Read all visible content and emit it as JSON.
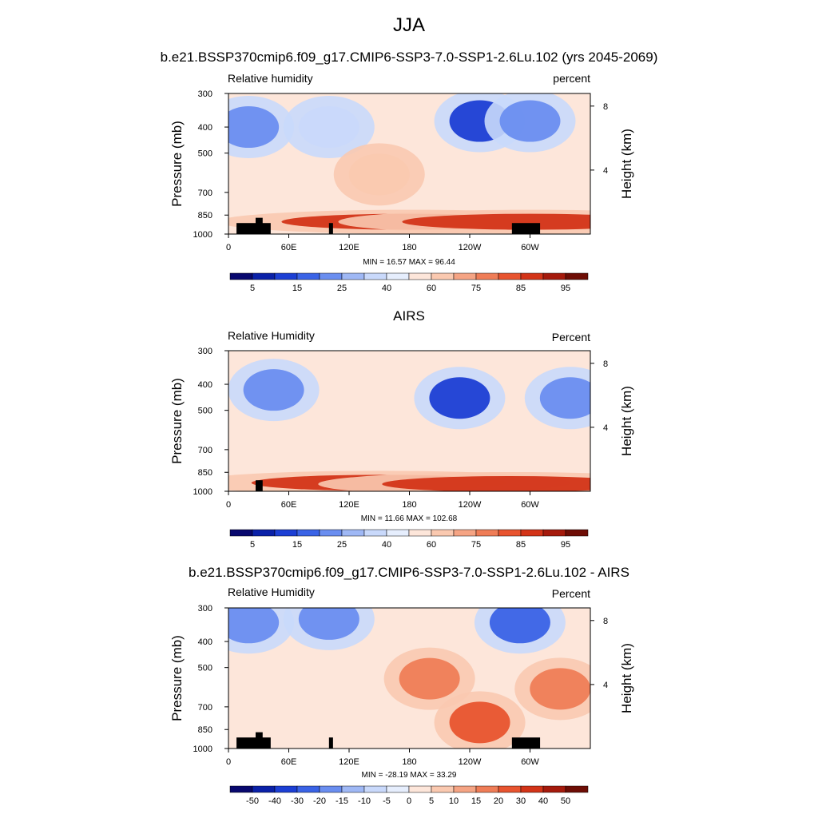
{
  "figure": {
    "title": "JJA"
  },
  "panels": [
    {
      "title": "b.e21.BSSP370cmip6.f09_g17.CMIP6-SSP3-7.0-SSP1-2.6Lu.102 (yrs 2045-2069)",
      "left_label": "Relative humidity",
      "right_label": "percent",
      "stats": "MIN =  16.57  MAX =  96.44"
    },
    {
      "title": "AIRS",
      "left_label": "Relative Humidity",
      "right_label": "Percent",
      "stats": "MIN =  11.66  MAX = 102.68"
    },
    {
      "title": "b.e21.BSSP370cmip6.f09_g17.CMIP6-SSP3-7.0-SSP1-2.6Lu.102 - AIRS",
      "left_label": "Relative Humidity",
      "right_label": "Percent",
      "stats": "MIN = -28.19  MAX =  33.29"
    }
  ],
  "chart_data": [
    {
      "type": "heatmap",
      "title": "b.e21.BSSP370cmip6.f09_g17.CMIP6-SSP3-7.0-SSP1-2.6Lu.102 (yrs 2045-2069)",
      "xlabel": "",
      "ylabel": "Pressure (mb)",
      "y2label": "Height (km)",
      "x_ticks": [
        "0",
        "60E",
        "120E",
        "180",
        "120W",
        "60W"
      ],
      "x_tick_values": [
        0,
        60,
        120,
        180,
        240,
        300
      ],
      "xlim": [
        0,
        360
      ],
      "y_ticks": [
        "300",
        "400",
        "500",
        "700",
        "850",
        "1000"
      ],
      "y_tick_values": [
        300,
        400,
        500,
        700,
        850,
        1000
      ],
      "ylim": [
        1000,
        300
      ],
      "y_scale": "log",
      "y2_ticks": [
        "8",
        "4"
      ],
      "y2_tick_values": [
        8,
        4
      ],
      "colorbar_labels": [
        "5",
        "15",
        "25",
        "40",
        "60",
        "75",
        "85",
        "95"
      ],
      "colorbar_colors": [
        "#08086e",
        "#0a21a8",
        "#1c3fd4",
        "#3a63e6",
        "#6a8ef0",
        "#9fb8f5",
        "#c9d9fb",
        "#e6eefd",
        "#fde6da",
        "#fac9b0",
        "#f5a484",
        "#ef7d57",
        "#e8542f",
        "#d33418",
        "#a51a0c",
        "#6e0d05"
      ],
      "min": 16.57,
      "max": 96.44,
      "features": [
        {
          "lon": 20,
          "p": 400,
          "value": 25
        },
        {
          "lon": 100,
          "p": 400,
          "value": 40
        },
        {
          "lon": 150,
          "p": 600,
          "value": 75
        },
        {
          "lon": 250,
          "p": 380,
          "value": 15
        },
        {
          "lon": 300,
          "p": 380,
          "value": 25
        },
        {
          "lon": 180,
          "p": 900,
          "value": 95
        },
        {
          "lon": 300,
          "p": 900,
          "value": 95
        }
      ],
      "topography": [
        {
          "lon_start": 8,
          "lon_end": 42,
          "p_top": 910
        },
        {
          "lon_start": 27,
          "lon_end": 34,
          "p_top": 870
        },
        {
          "lon_start": 100,
          "lon_end": 104,
          "p_top": 910
        },
        {
          "lon_start": 282,
          "lon_end": 310,
          "p_top": 910
        }
      ]
    },
    {
      "type": "heatmap",
      "title": "AIRS",
      "xlabel": "",
      "ylabel": "Pressure (mb)",
      "y2label": "Height (km)",
      "x_ticks": [
        "0",
        "60E",
        "120E",
        "180",
        "120W",
        "60W"
      ],
      "x_tick_values": [
        0,
        60,
        120,
        180,
        240,
        300
      ],
      "xlim": [
        0,
        360
      ],
      "y_ticks": [
        "300",
        "400",
        "500",
        "700",
        "850",
        "1000"
      ],
      "y_tick_values": [
        300,
        400,
        500,
        700,
        850,
        1000
      ],
      "ylim": [
        1000,
        300
      ],
      "y_scale": "log",
      "y2_ticks": [
        "8",
        "4"
      ],
      "y2_tick_values": [
        8,
        4
      ],
      "colorbar_labels": [
        "5",
        "15",
        "25",
        "40",
        "60",
        "75",
        "85",
        "95"
      ],
      "colorbar_colors": [
        "#08086e",
        "#0a21a8",
        "#1c3fd4",
        "#3a63e6",
        "#6a8ef0",
        "#9fb8f5",
        "#c9d9fb",
        "#e6eefd",
        "#fde6da",
        "#fac9b0",
        "#f5a484",
        "#ef7d57",
        "#e8542f",
        "#d33418",
        "#a51a0c",
        "#6e0d05"
      ],
      "min": 11.66,
      "max": 102.68,
      "features": [
        {
          "lon": 45,
          "p": 420,
          "value": 25
        },
        {
          "lon": 230,
          "p": 450,
          "value": 10
        },
        {
          "lon": 340,
          "p": 450,
          "value": 25
        },
        {
          "lon": 150,
          "p": 930,
          "value": 95
        },
        {
          "lon": 280,
          "p": 940,
          "value": 95
        }
      ],
      "topography": [
        {
          "lon_start": 27,
          "lon_end": 34,
          "p_top": 910
        }
      ]
    },
    {
      "type": "heatmap",
      "title": "b.e21.BSSP370cmip6.f09_g17.CMIP6-SSP3-7.0-SSP1-2.6Lu.102 - AIRS",
      "xlabel": "",
      "ylabel": "Pressure (mb)",
      "y2label": "Height (km)",
      "x_ticks": [
        "0",
        "60E",
        "120E",
        "180",
        "120W",
        "60W"
      ],
      "x_tick_values": [
        0,
        60,
        120,
        180,
        240,
        300
      ],
      "xlim": [
        0,
        360
      ],
      "y_ticks": [
        "300",
        "400",
        "500",
        "700",
        "850",
        "1000"
      ],
      "y_tick_values": [
        300,
        400,
        500,
        700,
        850,
        1000
      ],
      "ylim": [
        1000,
        300
      ],
      "y_scale": "log",
      "y2_ticks": [
        "8",
        "4"
      ],
      "y2_tick_values": [
        8,
        4
      ],
      "colorbar_labels": [
        "-50",
        "-40",
        "-30",
        "-20",
        "-15",
        "-10",
        "-5",
        "0",
        "5",
        "10",
        "15",
        "20",
        "30",
        "40",
        "50"
      ],
      "colorbar_colors": [
        "#08086e",
        "#0a21a8",
        "#1c3fd4",
        "#3a63e6",
        "#6a8ef0",
        "#9fb8f5",
        "#c9d9fb",
        "#e6eefd",
        "#fde6da",
        "#fac9b0",
        "#f5a484",
        "#ef7d57",
        "#e8542f",
        "#d33418",
        "#a51a0c",
        "#6e0d05"
      ],
      "min": -28.19,
      "max": 33.29,
      "features": [
        {
          "lon": 20,
          "p": 340,
          "value": -15
        },
        {
          "lon": 100,
          "p": 330,
          "value": -15
        },
        {
          "lon": 200,
          "p": 550,
          "value": 20
        },
        {
          "lon": 250,
          "p": 800,
          "value": 30
        },
        {
          "lon": 330,
          "p": 600,
          "value": 20
        },
        {
          "lon": 290,
          "p": 340,
          "value": -20
        }
      ],
      "topography": [
        {
          "lon_start": 8,
          "lon_end": 42,
          "p_top": 910
        },
        {
          "lon_start": 27,
          "lon_end": 34,
          "p_top": 870
        },
        {
          "lon_start": 100,
          "lon_end": 104,
          "p_top": 910
        },
        {
          "lon_start": 282,
          "lon_end": 310,
          "p_top": 910
        }
      ]
    }
  ]
}
